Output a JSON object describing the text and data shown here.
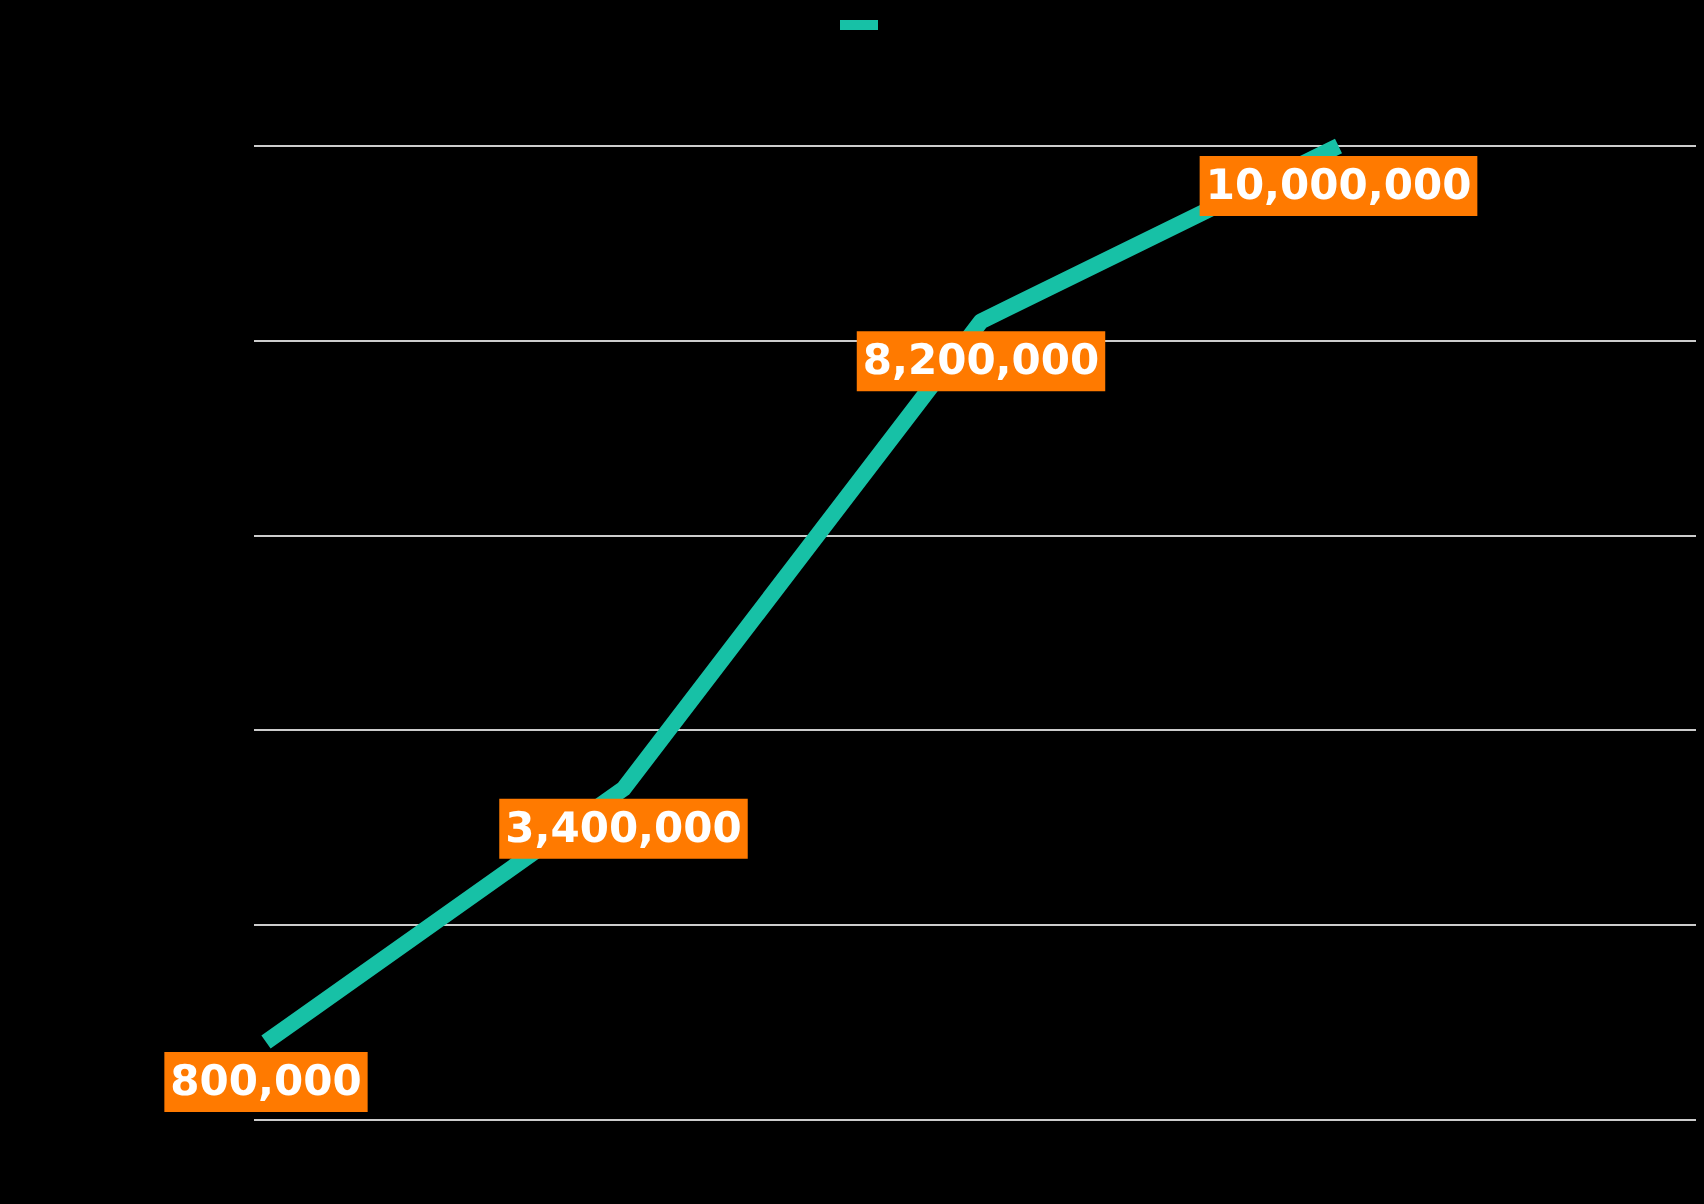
{
  "chart_data": {
    "type": "line",
    "categories": [
      null,
      null,
      null,
      null,
      null
    ],
    "series": [
      {
        "color": "#17c1a6",
        "values": [
          800000,
          3400000,
          8200000,
          10000000,
          null
        ],
        "value_labels": [
          "800,000",
          "3,400,000",
          "8,200,000",
          "10,000,000",
          null
        ]
      }
    ],
    "grid": "y",
    "marker": "none",
    "line_style": "solid"
  }
}
